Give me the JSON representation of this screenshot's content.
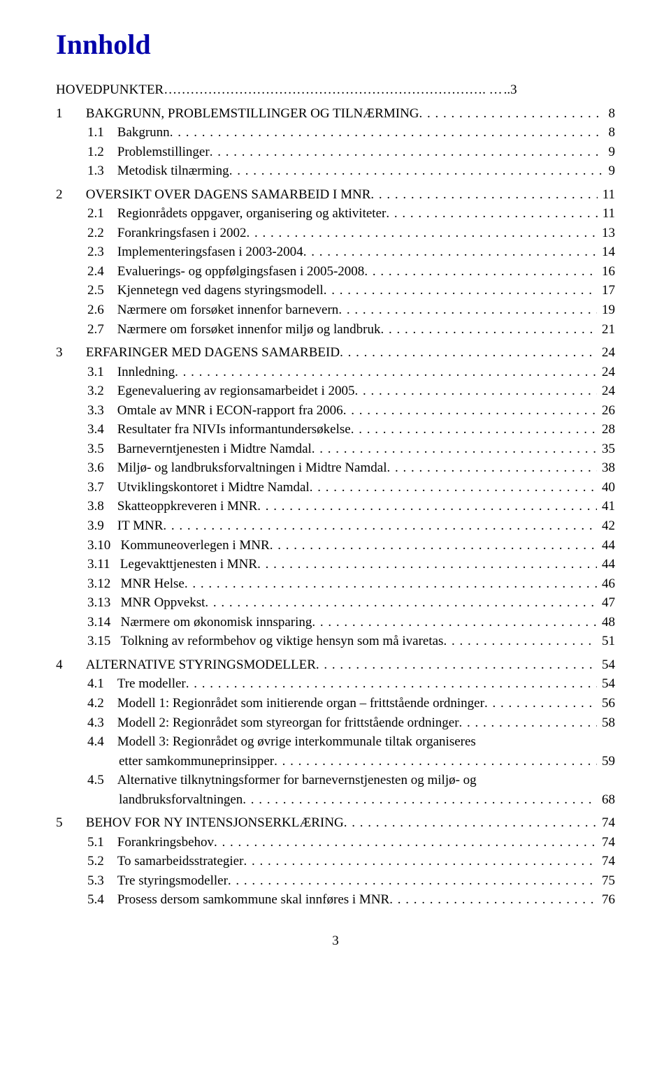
{
  "title": "Innhold",
  "page_number": "3",
  "colors": {
    "title": "#0000aa",
    "text": "#000000",
    "background": "#ffffff"
  },
  "fonts": {
    "family": "Times New Roman",
    "title_size": 40,
    "body_size": 19
  },
  "toc": [
    {
      "indent": 0,
      "num": "",
      "label": "HOVEDPUNKTER………………………………………………………………. …",
      "page": "..3",
      "nodots": true
    },
    {
      "spacer": true
    },
    {
      "indent": 0,
      "num": "1",
      "label": "BAKGRUNN, PROBLEMSTILLINGER OG TILNÆRMING",
      "page": "8"
    },
    {
      "indent": 1,
      "num": "1.1",
      "label": "Bakgrunn",
      "page": "8"
    },
    {
      "indent": 1,
      "num": "1.2",
      "label": "Problemstillinger",
      "page": "9"
    },
    {
      "indent": 1,
      "num": "1.3",
      "label": "Metodisk tilnærming",
      "page": "9"
    },
    {
      "spacer": true
    },
    {
      "indent": 0,
      "num": "2",
      "label": "OVERSIKT OVER DAGENS SAMARBEID I MNR",
      "page": "11"
    },
    {
      "indent": 1,
      "num": "2.1",
      "label": "Regionrådets oppgaver, organisering og aktiviteter",
      "page": "11"
    },
    {
      "indent": 1,
      "num": "2.2",
      "label": "Forankringsfasen i 2002",
      "page": "13"
    },
    {
      "indent": 1,
      "num": "2.3",
      "label": "Implementeringsfasen i 2003-2004",
      "page": "14"
    },
    {
      "indent": 1,
      "num": "2.4",
      "label": "Evaluerings- og oppfølgingsfasen i 2005-2008",
      "page": "16"
    },
    {
      "indent": 1,
      "num": "2.5",
      "label": "Kjennetegn ved dagens styringsmodell",
      "page": "17"
    },
    {
      "indent": 1,
      "num": "2.6",
      "label": "Nærmere om forsøket innenfor barnevern",
      "page": "19"
    },
    {
      "indent": 1,
      "num": "2.7",
      "label": "Nærmere om forsøket innenfor miljø og landbruk",
      "page": "21"
    },
    {
      "spacer": true
    },
    {
      "indent": 0,
      "num": "3",
      "label": "ERFARINGER MED DAGENS SAMARBEID",
      "page": "24"
    },
    {
      "indent": 1,
      "num": "3.1",
      "label": "Innledning",
      "page": "24"
    },
    {
      "indent": 1,
      "num": "3.2",
      "label": "Egenevaluering av regionsamarbeidet i 2005",
      "page": "24"
    },
    {
      "indent": 1,
      "num": "3.3",
      "label": "Omtale av MNR i ECON-rapport fra 2006",
      "page": "26"
    },
    {
      "indent": 1,
      "num": "3.4",
      "label": "Resultater fra NIVIs informantundersøkelse",
      "page": "28"
    },
    {
      "indent": 1,
      "num": "3.5",
      "label": "Barneverntjenesten i Midtre Namdal",
      "page": "35"
    },
    {
      "indent": 1,
      "num": "3.6",
      "label": "Miljø- og landbruksforvaltningen i Midtre Namdal",
      "page": "38"
    },
    {
      "indent": 1,
      "num": "3.7",
      "label": "Utviklingskontoret i Midtre Namdal",
      "page": "40"
    },
    {
      "indent": 1,
      "num": "3.8",
      "label": "Skatteoppkreveren i MNR",
      "page": "41"
    },
    {
      "indent": 1,
      "num": "3.9",
      "label": "IT MNR",
      "page": "42"
    },
    {
      "indent": 1,
      "num": "3.10",
      "label": "Kommuneoverlegen i MNR",
      "page": "44"
    },
    {
      "indent": 1,
      "num": "3.11",
      "label": "Legevakttjenesten i MNR",
      "page": "44"
    },
    {
      "indent": 1,
      "num": "3.12",
      "label": "MNR Helse",
      "page": "46"
    },
    {
      "indent": 1,
      "num": "3.13",
      "label": "MNR Oppvekst",
      "page": "47"
    },
    {
      "indent": 1,
      "num": "3.14",
      "label": "Nærmere om økonomisk innsparing",
      "page": "48"
    },
    {
      "indent": 1,
      "num": "3.15",
      "label": "Tolkning av reformbehov og viktige hensyn som må ivaretas",
      "page": "51"
    },
    {
      "spacer": true
    },
    {
      "indent": 0,
      "num": "4",
      "label": "ALTERNATIVE STYRINGSMODELLER",
      "page": "54"
    },
    {
      "indent": 1,
      "num": "4.1",
      "label": "Tre modeller",
      "page": "54"
    },
    {
      "indent": 1,
      "num": "4.2",
      "label": "Modell 1: Regionrådet som initierende organ – frittstående ordninger",
      "page": "56"
    },
    {
      "indent": 1,
      "num": "4.3",
      "label": "Modell 2: Regionrådet som styreorgan for frittstående ordninger",
      "page": "58"
    },
    {
      "indent": 1,
      "num": "4.4",
      "label": "Modell 3: Regionrådet og øvrige interkommunale tiltak organiseres",
      "page": "",
      "nopagewrap": true
    },
    {
      "wrap": true,
      "label": "etter samkommuneprinsipper",
      "page": "59"
    },
    {
      "indent": 1,
      "num": "4.5",
      "label": "Alternative tilknytningsformer for barnevernstjenesten og miljø- og",
      "page": "",
      "nopagewrap": true
    },
    {
      "wrap": true,
      "label": "landbruksforvaltningen",
      "page": "68"
    },
    {
      "spacer": true
    },
    {
      "indent": 0,
      "num": "5",
      "label": "BEHOV FOR NY INTENSJONSERKLÆRING",
      "page": "74"
    },
    {
      "indent": 1,
      "num": "5.1",
      "label": "Forankringsbehov",
      "page": "74"
    },
    {
      "indent": 1,
      "num": "5.2",
      "label": "To samarbeidsstrategier",
      "page": "74"
    },
    {
      "indent": 1,
      "num": "5.3",
      "label": "Tre styringsmodeller",
      "page": "75"
    },
    {
      "indent": 1,
      "num": "5.4",
      "label": "Prosess dersom samkommune skal innføres i MNR",
      "page": "76"
    }
  ]
}
